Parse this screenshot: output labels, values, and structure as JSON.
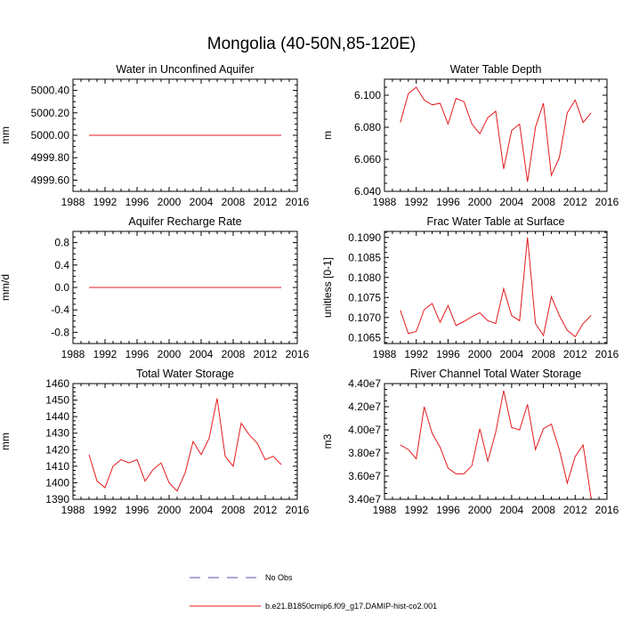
{
  "figure": {
    "title": "Mongolia (40-50N,85-120E)"
  },
  "legend": {
    "items": [
      {
        "label": "No Obs",
        "style": "dashed",
        "color": "#5a4ea8"
      },
      {
        "label": "b.e21.B1850cmip6.f09_g17.DAMIP-hist-co2.001",
        "style": "solid",
        "color": "#e41a1c"
      }
    ]
  },
  "chart_data": [
    {
      "type": "line",
      "title": "Water in Unconfined Aquifer",
      "xlabel": "",
      "ylabel": "mm",
      "xlim": [
        1988,
        2016
      ],
      "ylim": [
        4999.5,
        5000.5
      ],
      "xticks": [
        1988,
        1992,
        1996,
        2000,
        2004,
        2008,
        2012,
        2016
      ],
      "yticks": [
        4999.6,
        4999.8,
        5000.0,
        5000.2,
        5000.4
      ],
      "ytick_labels": [
        "4999.60",
        "4999.80",
        "5000.00",
        "5000.20",
        "5000.40"
      ],
      "x": [
        1990,
        1991,
        1992,
        1993,
        1994,
        1995,
        1996,
        1997,
        1998,
        1999,
        2000,
        2001,
        2002,
        2003,
        2004,
        2005,
        2006,
        2007,
        2008,
        2009,
        2010,
        2011,
        2012,
        2013,
        2014
      ],
      "series": [
        {
          "color": "#e41a1c",
          "values": [
            5000,
            5000,
            5000,
            5000,
            5000,
            5000,
            5000,
            5000,
            5000,
            5000,
            5000,
            5000,
            5000,
            5000,
            5000,
            5000,
            5000,
            5000,
            5000,
            5000,
            5000,
            5000,
            5000,
            5000,
            5000
          ]
        }
      ]
    },
    {
      "type": "line",
      "title": "Water Table Depth",
      "xlabel": "",
      "ylabel": "m",
      "xlim": [
        1988,
        2016
      ],
      "ylim": [
        6.04,
        6.11
      ],
      "xticks": [
        1988,
        1992,
        1996,
        2000,
        2004,
        2008,
        2012,
        2016
      ],
      "yticks": [
        6.04,
        6.06,
        6.08,
        6.1
      ],
      "ytick_labels": [
        "6.040",
        "6.060",
        "6.080",
        "6.100"
      ],
      "x": [
        1990,
        1991,
        1992,
        1993,
        1994,
        1995,
        1996,
        1997,
        1998,
        1999,
        2000,
        2001,
        2002,
        2003,
        2004,
        2005,
        2006,
        2007,
        2008,
        2009,
        2010,
        2011,
        2012,
        2013,
        2014
      ],
      "series": [
        {
          "color": "#e41a1c",
          "values": [
            6.083,
            6.101,
            6.105,
            6.097,
            6.094,
            6.095,
            6.082,
            6.098,
            6.096,
            6.082,
            6.076,
            6.086,
            6.09,
            6.054,
            6.078,
            6.082,
            6.046,
            6.08,
            6.095,
            6.05,
            6.061,
            6.089,
            6.097,
            6.083,
            6.089
          ]
        }
      ]
    },
    {
      "type": "line",
      "title": "Aquifer Recharge Rate",
      "xlabel": "",
      "ylabel": "mm/d",
      "xlim": [
        1988,
        2016
      ],
      "ylim": [
        -1.0,
        1.0
      ],
      "xticks": [
        1988,
        1992,
        1996,
        2000,
        2004,
        2008,
        2012,
        2016
      ],
      "yticks": [
        -0.8,
        -0.4,
        0,
        0.4,
        0.8
      ],
      "ytick_labels": [
        "-0.8",
        "-0.4",
        "0.0",
        "0.4",
        "0.8"
      ],
      "x": [
        1990,
        1991,
        1992,
        1993,
        1994,
        1995,
        1996,
        1997,
        1998,
        1999,
        2000,
        2001,
        2002,
        2003,
        2004,
        2005,
        2006,
        2007,
        2008,
        2009,
        2010,
        2011,
        2012,
        2013,
        2014
      ],
      "series": [
        {
          "color": "#e41a1c",
          "values": [
            0,
            0,
            0,
            0,
            0,
            0,
            0,
            0,
            0,
            0,
            0,
            0,
            0,
            0,
            0,
            0,
            0,
            0,
            0,
            0,
            0,
            0,
            0,
            0,
            0
          ]
        }
      ]
    },
    {
      "type": "line",
      "title": "Frac Water Table at Surface",
      "xlabel": "",
      "ylabel": "unitless [0-1]",
      "xlim": [
        1988,
        2016
      ],
      "ylim": [
        0.10635,
        0.10915
      ],
      "xticks": [
        1988,
        1992,
        1996,
        2000,
        2004,
        2008,
        2012,
        2016
      ],
      "yticks": [
        0.1065,
        0.107,
        0.1075,
        0.108,
        0.1085,
        0.109
      ],
      "ytick_labels": [
        "0.1065",
        "0.1070",
        "0.1075",
        "0.1080",
        "0.1085",
        "0.1090"
      ],
      "x": [
        1990,
        1991,
        1992,
        1993,
        1994,
        1995,
        1996,
        1997,
        1998,
        1999,
        2000,
        2001,
        2002,
        2003,
        2004,
        2005,
        2006,
        2007,
        2008,
        2009,
        2010,
        2011,
        2012,
        2013,
        2014
      ],
      "series": [
        {
          "color": "#e41a1c",
          "values": [
            0.10718,
            0.1066,
            0.10665,
            0.1072,
            0.10735,
            0.10688,
            0.1073,
            0.1068,
            0.1069,
            0.10702,
            0.10712,
            0.10692,
            0.10685,
            0.10772,
            0.10705,
            0.10692,
            0.109,
            0.10685,
            0.10655,
            0.10752,
            0.10705,
            0.10668,
            0.10652,
            0.10685,
            0.10705
          ]
        }
      ]
    },
    {
      "type": "line",
      "title": "Total Water Storage",
      "xlabel": "",
      "ylabel": "mm",
      "xlim": [
        1988,
        2016
      ],
      "ylim": [
        1390,
        1460
      ],
      "xticks": [
        1988,
        1992,
        1996,
        2000,
        2004,
        2008,
        2012,
        2016
      ],
      "yticks": [
        1390,
        1400,
        1410,
        1420,
        1430,
        1440,
        1450,
        1460
      ],
      "ytick_labels": [
        "1390",
        "1400",
        "1410",
        "1420",
        "1430",
        "1440",
        "1450",
        "1460"
      ],
      "x": [
        1990,
        1991,
        1992,
        1993,
        1994,
        1995,
        1996,
        1997,
        1998,
        1999,
        2000,
        2001,
        2002,
        2003,
        2004,
        2005,
        2006,
        2007,
        2008,
        2009,
        2010,
        2011,
        2012,
        2013,
        2014
      ],
      "series": [
        {
          "color": "#e41a1c",
          "values": [
            1417,
            1401,
            1397,
            1410,
            1414,
            1412,
            1414,
            1401,
            1408,
            1412,
            1400,
            1395,
            1406,
            1425,
            1417,
            1427,
            1451,
            1416,
            1410,
            1436,
            1429,
            1424,
            1414,
            1416,
            1411
          ]
        }
      ]
    },
    {
      "type": "line",
      "title": "River Channel Total Water Storage",
      "xlabel": "",
      "ylabel": "m3",
      "xlim": [
        1988,
        2016
      ],
      "ylim": [
        34000000,
        44000000
      ],
      "xticks": [
        1988,
        1992,
        1996,
        2000,
        2004,
        2008,
        2012,
        2016
      ],
      "yticks": [
        34000000,
        36000000,
        38000000,
        40000000,
        42000000,
        44000000
      ],
      "ytick_labels": [
        "3.40e7",
        "3.60e7",
        "3.80e7",
        "4.00e7",
        "4.20e7",
        "4.40e7"
      ],
      "x": [
        1990,
        1991,
        1992,
        1993,
        1994,
        1995,
        1996,
        1997,
        1998,
        1999,
        2000,
        2001,
        2002,
        2003,
        2004,
        2005,
        2006,
        2007,
        2008,
        2009,
        2010,
        2011,
        2012,
        2013,
        2014
      ],
      "series": [
        {
          "color": "#e41a1c",
          "values": [
            38700000,
            38300000,
            37500000,
            42000000,
            39700000,
            38500000,
            36700000,
            36200000,
            36200000,
            36900000,
            40100000,
            37300000,
            39800000,
            43400000,
            40200000,
            40000000,
            42200000,
            38300000,
            40100000,
            40500000,
            38300000,
            35400000,
            37700000,
            38700000,
            34100000
          ]
        }
      ]
    }
  ]
}
